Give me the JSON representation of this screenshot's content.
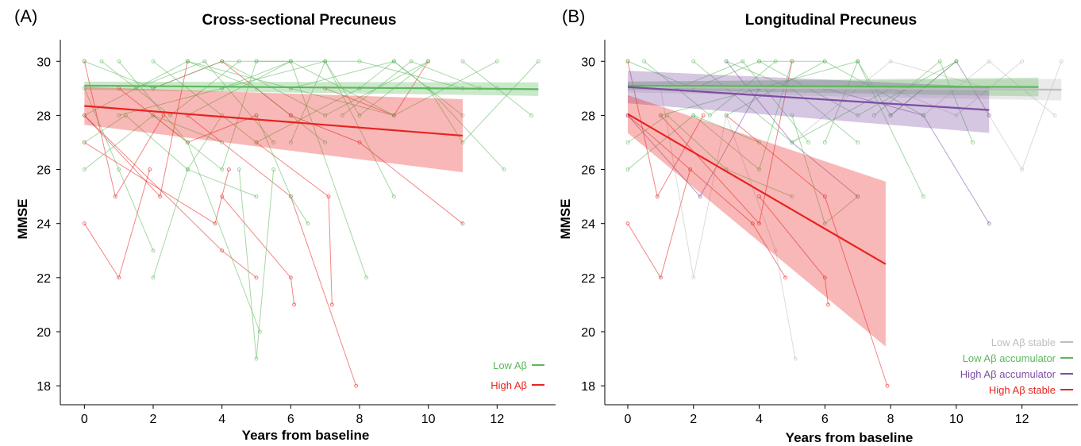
{
  "chart_data": [
    {
      "type": "line",
      "panel_label": "(A)",
      "title": "Cross-sectional Precuneus",
      "xlabel": "Years from baseline",
      "ylabel": "MMSE",
      "xlim": [
        -0.7,
        13.7
      ],
      "ylim": [
        17.3,
        30.8
      ],
      "xticks": [
        0,
        2,
        4,
        6,
        8,
        10,
        12
      ],
      "yticks": [
        18,
        20,
        22,
        24,
        26,
        28,
        30
      ],
      "grid": false,
      "legend_position": "bottom-right",
      "series": [
        {
          "name": "Low Aβ",
          "color": "#5cb85c",
          "fit_x": [
            0,
            13.2
          ],
          "fit_y": [
            29.1,
            28.97
          ],
          "ci_lower": [
            28.95,
            28.72
          ],
          "ci_upper": [
            29.25,
            29.22
          ]
        },
        {
          "name": "High Aβ",
          "color": "#e8231f",
          "fit_x": [
            0,
            11
          ],
          "fit_y": [
            28.35,
            27.25
          ],
          "ci_lower": [
            27.65,
            25.9
          ],
          "ci_upper": [
            29.05,
            28.6
          ]
        }
      ],
      "subject_lines": [
        {
          "group": "High Aβ",
          "x": [
            0,
            0.9,
            2.3
          ],
          "y": [
            30,
            25,
            28
          ]
        },
        {
          "group": "High Aβ",
          "x": [
            0,
            1,
            1.9
          ],
          "y": [
            24,
            22,
            26
          ]
        },
        {
          "group": "High Aβ",
          "x": [
            0,
            2.2,
            3
          ],
          "y": [
            28,
            25,
            30
          ]
        },
        {
          "group": "High Aβ",
          "x": [
            0,
            3.8,
            4.2
          ],
          "y": [
            27,
            24,
            26
          ]
        },
        {
          "group": "High Aβ",
          "x": [
            0,
            4,
            5
          ],
          "y": [
            28,
            23,
            22
          ]
        },
        {
          "group": "High Aβ",
          "x": [
            3,
            6,
            7.9
          ],
          "y": [
            28,
            25,
            18
          ]
        },
        {
          "group": "High Aβ",
          "x": [
            4,
            6,
            6.1
          ],
          "y": [
            25,
            22,
            21
          ]
        },
        {
          "group": "High Aβ",
          "x": [
            5,
            7.1,
            7.2
          ],
          "y": [
            27,
            25,
            21
          ]
        },
        {
          "group": "High Aβ",
          "x": [
            6,
            8,
            11
          ],
          "y": [
            28,
            27,
            24
          ]
        },
        {
          "group": "High Aβ",
          "x": [
            1,
            3,
            5
          ],
          "y": [
            29,
            27,
            28
          ]
        },
        {
          "group": "High Aβ",
          "x": [
            2,
            4,
            6
          ],
          "y": [
            29,
            30,
            28
          ]
        },
        {
          "group": "High Aβ",
          "x": [
            7,
            9,
            10
          ],
          "y": [
            29,
            28,
            30
          ]
        },
        {
          "group": "Low Aβ",
          "x": [
            0,
            2,
            4,
            6
          ],
          "y": [
            30,
            29,
            30,
            30
          ]
        },
        {
          "group": "Low Aβ",
          "x": [
            0,
            1,
            2
          ],
          "y": [
            29,
            26,
            23
          ]
        },
        {
          "group": "Low Aβ",
          "x": [
            0,
            1.2,
            3,
            5
          ],
          "y": [
            27,
            28,
            26,
            25
          ]
        },
        {
          "group": "Low Aβ",
          "x": [
            0,
            2,
            4
          ],
          "y": [
            26,
            28,
            27
          ]
        },
        {
          "group": "Low Aβ",
          "x": [
            1,
            3,
            5.1
          ],
          "y": [
            30,
            27,
            20
          ]
        },
        {
          "group": "Low Aβ",
          "x": [
            2,
            4,
            5
          ],
          "y": [
            28,
            26,
            30
          ]
        },
        {
          "group": "Low Aβ",
          "x": [
            3,
            5,
            7
          ],
          "y": [
            30,
            29,
            27
          ]
        },
        {
          "group": "Low Aβ",
          "x": [
            4,
            6,
            8.2
          ],
          "y": [
            29,
            30,
            22
          ]
        },
        {
          "group": "Low Aβ",
          "x": [
            5,
            6,
            6.5
          ],
          "y": [
            28,
            25,
            24
          ]
        },
        {
          "group": "Low Aβ",
          "x": [
            6,
            7,
            9
          ],
          "y": [
            27,
            30,
            25
          ]
        },
        {
          "group": "Low Aβ",
          "x": [
            7,
            8,
            10
          ],
          "y": [
            30,
            28,
            30
          ]
        },
        {
          "group": "Low Aβ",
          "x": [
            8,
            9,
            11
          ],
          "y": [
            29,
            30,
            28
          ]
        },
        {
          "group": "Low Aβ",
          "x": [
            9,
            10,
            12.2
          ],
          "y": [
            30,
            29,
            26
          ]
        },
        {
          "group": "Low Aβ",
          "x": [
            10,
            11,
            13.2
          ],
          "y": [
            29,
            27,
            30
          ]
        },
        {
          "group": "Low Aβ",
          "x": [
            11,
            12,
            13
          ],
          "y": [
            30,
            29,
            28
          ]
        },
        {
          "group": "Low Aβ",
          "x": [
            0.5,
            2.5,
            4.5
          ],
          "y": [
            30,
            28,
            30
          ]
        },
        {
          "group": "Low Aβ",
          "x": [
            1.5,
            3.5,
            5.5
          ],
          "y": [
            29,
            30,
            27
          ]
        },
        {
          "group": "Low Aβ",
          "x": [
            2,
            5,
            8
          ],
          "y": [
            30,
            27,
            29
          ]
        },
        {
          "group": "Low Aβ",
          "x": [
            3,
            6,
            9
          ],
          "y": [
            28,
            30,
            28
          ]
        },
        {
          "group": "Low Aβ",
          "x": [
            4,
            7,
            10
          ],
          "y": [
            30,
            28,
            30
          ]
        },
        {
          "group": "Low Aβ",
          "x": [
            0,
            3,
            6,
            9
          ],
          "y": [
            28,
            30,
            29,
            30
          ]
        },
        {
          "group": "Low Aβ",
          "x": [
            1,
            4,
            7
          ],
          "y": [
            28,
            29,
            30
          ]
        },
        {
          "group": "Low Aβ",
          "x": [
            5,
            8,
            11
          ],
          "y": [
            30,
            30,
            29
          ]
        },
        {
          "group": "Low Aβ",
          "x": [
            6,
            9,
            12
          ],
          "y": [
            29,
            28,
            30
          ]
        },
        {
          "group": "Low Aβ",
          "x": [
            7.5,
            9.5,
            11.5
          ],
          "y": [
            28,
            30,
            29
          ]
        },
        {
          "group": "Low Aβ",
          "x": [
            2,
            3,
            4
          ],
          "y": [
            22,
            26,
            28
          ]
        },
        {
          "group": "Low Aβ",
          "x": [
            4.5,
            5,
            5.5
          ],
          "y": [
            26,
            19,
            26
          ]
        }
      ]
    },
    {
      "type": "line",
      "panel_label": "(B)",
      "title": "Longitudinal Precuneus",
      "xlabel": "Years from baseline",
      "ylabel": "MMSE",
      "xlim": [
        -0.7,
        13.7
      ],
      "ylim": [
        17.3,
        30.8
      ],
      "xticks": [
        0,
        2,
        4,
        6,
        8,
        10,
        12
      ],
      "yticks": [
        18,
        20,
        22,
        24,
        26,
        28,
        30
      ],
      "grid": false,
      "legend_position": "bottom-right",
      "series": [
        {
          "name": "Low Aβ stable",
          "color": "#bdbdbd",
          "fit_x": [
            0,
            13.2
          ],
          "fit_y": [
            29.05,
            28.95
          ],
          "ci_lower": [
            28.85,
            28.55
          ],
          "ci_upper": [
            29.25,
            29.35
          ]
        },
        {
          "name": "Low Aβ accumulator",
          "color": "#5cb85c",
          "fit_x": [
            0,
            12.5
          ],
          "fit_y": [
            29.1,
            29.05
          ],
          "ci_lower": [
            28.95,
            28.7
          ],
          "ci_upper": [
            29.25,
            29.4
          ]
        },
        {
          "name": "High Aβ accumulator",
          "color": "#7d4ea3",
          "fit_x": [
            0,
            11
          ],
          "fit_y": [
            29.05,
            28.2
          ],
          "ci_lower": [
            28.45,
            27.35
          ],
          "ci_upper": [
            29.65,
            29.05
          ]
        },
        {
          "name": "High Aβ  stable",
          "color": "#e8231f",
          "fit_x": [
            0,
            7.85
          ],
          "fit_y": [
            28.05,
            22.5
          ],
          "ci_lower": [
            27.35,
            19.45
          ],
          "ci_upper": [
            28.75,
            25.55
          ]
        }
      ],
      "subject_lines": [
        {
          "group": "High Aβ  stable",
          "x": [
            0,
            0.9,
            2.3
          ],
          "y": [
            30,
            25,
            28
          ]
        },
        {
          "group": "High Aβ  stable",
          "x": [
            0,
            1,
            1.9
          ],
          "y": [
            24,
            22,
            26
          ]
        },
        {
          "group": "High Aβ  stable",
          "x": [
            0,
            3.8,
            4.8
          ],
          "y": [
            28,
            24,
            22
          ]
        },
        {
          "group": "High Aβ  stable",
          "x": [
            3,
            6,
            7.9
          ],
          "y": [
            28,
            25,
            18
          ]
        },
        {
          "group": "High Aβ  stable",
          "x": [
            4,
            6,
            6.1
          ],
          "y": [
            25,
            22,
            21
          ]
        },
        {
          "group": "High Aβ  stable",
          "x": [
            1,
            4,
            5
          ],
          "y": [
            28,
            24,
            30
          ]
        },
        {
          "group": "High Aβ accumulator",
          "x": [
            0,
            2.2,
            4
          ],
          "y": [
            28,
            25,
            29
          ]
        },
        {
          "group": "High Aβ accumulator",
          "x": [
            3,
            5,
            7
          ],
          "y": [
            30,
            27,
            25
          ]
        },
        {
          "group": "High Aβ accumulator",
          "x": [
            6,
            9,
            11
          ],
          "y": [
            29,
            28,
            24
          ]
        },
        {
          "group": "High Aβ accumulator",
          "x": [
            8,
            10,
            11
          ],
          "y": [
            28,
            30,
            28
          ]
        },
        {
          "group": "Low Aβ stable",
          "x": [
            1,
            2,
            3
          ],
          "y": [
            29,
            22,
            28
          ]
        },
        {
          "group": "Low Aβ stable",
          "x": [
            3,
            4.5,
            5.1
          ],
          "y": [
            28,
            23,
            19
          ]
        },
        {
          "group": "Low Aβ stable",
          "x": [
            8,
            10,
            12
          ],
          "y": [
            29,
            28,
            30
          ]
        },
        {
          "group": "Low Aβ stable",
          "x": [
            10,
            12,
            13.2
          ],
          "y": [
            30,
            26,
            30
          ]
        },
        {
          "group": "Low Aβ stable",
          "x": [
            5,
            8,
            11
          ],
          "y": [
            27,
            30,
            29
          ]
        },
        {
          "group": "Low Aβ stable",
          "x": [
            9,
            11,
            13
          ],
          "y": [
            28,
            30,
            28
          ]
        },
        {
          "group": "Low Aβ accumulator",
          "x": [
            0,
            2,
            4,
            6
          ],
          "y": [
            30,
            29,
            30,
            30
          ]
        },
        {
          "group": "Low Aβ accumulator",
          "x": [
            0,
            1.2,
            3,
            5
          ],
          "y": [
            27,
            28,
            26,
            25
          ]
        },
        {
          "group": "Low Aβ accumulator",
          "x": [
            0,
            2,
            4
          ],
          "y": [
            26,
            28,
            27
          ]
        },
        {
          "group": "Low Aβ accumulator",
          "x": [
            2,
            4,
            5
          ],
          "y": [
            28,
            26,
            30
          ]
        },
        {
          "group": "Low Aβ accumulator",
          "x": [
            3,
            5,
            7
          ],
          "y": [
            30,
            29,
            27
          ]
        },
        {
          "group": "Low Aβ accumulator",
          "x": [
            5,
            6,
            7
          ],
          "y": [
            28,
            24,
            25
          ]
        },
        {
          "group": "Low Aβ accumulator",
          "x": [
            6,
            7,
            9
          ],
          "y": [
            27,
            30,
            25
          ]
        },
        {
          "group": "Low Aβ accumulator",
          "x": [
            7,
            8,
            10
          ],
          "y": [
            30,
            28,
            30
          ]
        },
        {
          "group": "Low Aβ accumulator",
          "x": [
            0.5,
            2.5,
            4.5
          ],
          "y": [
            30,
            28,
            30
          ]
        },
        {
          "group": "Low Aβ accumulator",
          "x": [
            1.5,
            3.5,
            5.5
          ],
          "y": [
            29,
            30,
            27
          ]
        },
        {
          "group": "Low Aβ accumulator",
          "x": [
            2,
            5,
            8
          ],
          "y": [
            30,
            27,
            29
          ]
        },
        {
          "group": "Low Aβ accumulator",
          "x": [
            3,
            6,
            9
          ],
          "y": [
            28,
            30,
            28
          ]
        },
        {
          "group": "Low Aβ accumulator",
          "x": [
            4,
            7,
            10
          ],
          "y": [
            30,
            28,
            30
          ]
        },
        {
          "group": "Low Aβ accumulator",
          "x": [
            1,
            4,
            7
          ],
          "y": [
            28,
            29,
            30
          ]
        },
        {
          "group": "Low Aβ accumulator",
          "x": [
            7.5,
            9.5,
            10.5
          ],
          "y": [
            28,
            30,
            27
          ]
        }
      ]
    }
  ]
}
